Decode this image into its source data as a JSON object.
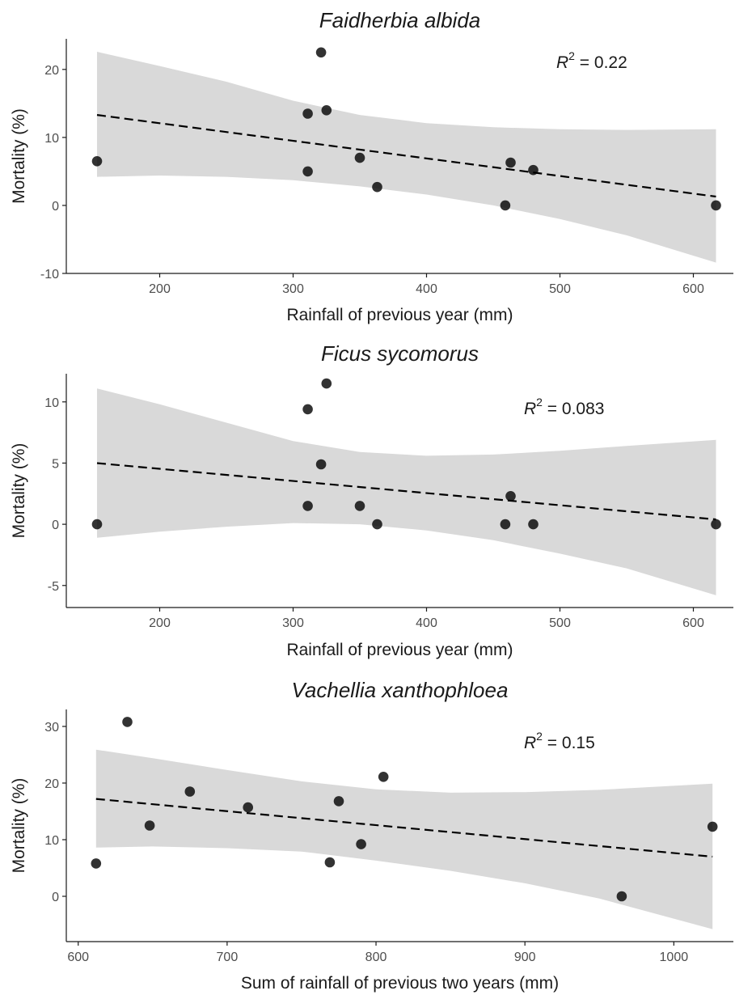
{
  "chart_data": [
    {
      "type": "scatter",
      "title": "Faidherbia albida",
      "xlabel": "Rainfall of previous year (mm)",
      "ylabel": "Mortality (%)",
      "xlim": [
        130,
        630
      ],
      "ylim": [
        -10,
        24.5
      ],
      "xticks": [
        200,
        300,
        400,
        500,
        600
      ],
      "yticks": [
        -10,
        0,
        10,
        20
      ],
      "annotation": {
        "prefix": "R",
        "sup": "2",
        "value": " = 0.22"
      },
      "points": [
        {
          "x": 153,
          "y": 6.5
        },
        {
          "x": 311,
          "y": 13.5
        },
        {
          "x": 311,
          "y": 5.0
        },
        {
          "x": 321,
          "y": 22.5
        },
        {
          "x": 325,
          "y": 14.0
        },
        {
          "x": 350,
          "y": 7.0
        },
        {
          "x": 363,
          "y": 2.7
        },
        {
          "x": 459,
          "y": 0.0
        },
        {
          "x": 463,
          "y": 6.3
        },
        {
          "x": 480,
          "y": 5.2
        },
        {
          "x": 617,
          "y": 0.0
        }
      ],
      "fit": {
        "x": [
          153,
          617
        ],
        "y": [
          13.3,
          1.3
        ]
      },
      "band": [
        {
          "x": 153,
          "lo": 4.2,
          "hi": 22.6
        },
        {
          "x": 200,
          "lo": 4.4,
          "hi": 20.5
        },
        {
          "x": 250,
          "lo": 4.2,
          "hi": 18.2
        },
        {
          "x": 300,
          "lo": 3.7,
          "hi": 15.4
        },
        {
          "x": 350,
          "lo": 2.8,
          "hi": 13.3
        },
        {
          "x": 400,
          "lo": 1.6,
          "hi": 12.1
        },
        {
          "x": 450,
          "lo": 0.0,
          "hi": 11.5
        },
        {
          "x": 500,
          "lo": -2.0,
          "hi": 11.2
        },
        {
          "x": 550,
          "lo": -4.4,
          "hi": 11.1
        },
        {
          "x": 617,
          "lo": -8.4,
          "hi": 11.2
        }
      ]
    },
    {
      "type": "scatter",
      "title": "Ficus sycomorus",
      "xlabel": "Rainfall of previous year (mm)",
      "ylabel": "Mortality (%)",
      "xlim": [
        130,
        630
      ],
      "ylim": [
        -6.8,
        12.3
      ],
      "xticks": [
        200,
        300,
        400,
        500,
        600
      ],
      "yticks": [
        -5,
        0,
        5,
        10
      ],
      "annotation": {
        "prefix": "R",
        "sup": "2",
        "value": " = 0.083"
      },
      "points": [
        {
          "x": 153,
          "y": 0.0
        },
        {
          "x": 311,
          "y": 9.4
        },
        {
          "x": 311,
          "y": 1.5
        },
        {
          "x": 321,
          "y": 4.9
        },
        {
          "x": 325,
          "y": 11.5
        },
        {
          "x": 350,
          "y": 1.5
        },
        {
          "x": 363,
          "y": 0.0
        },
        {
          "x": 459,
          "y": 0.0
        },
        {
          "x": 463,
          "y": 2.3
        },
        {
          "x": 480,
          "y": 0.0
        },
        {
          "x": 617,
          "y": 0.0
        }
      ],
      "fit": {
        "x": [
          153,
          617
        ],
        "y": [
          5.0,
          0.4
        ]
      },
      "band": [
        {
          "x": 153,
          "lo": -1.1,
          "hi": 11.1
        },
        {
          "x": 200,
          "lo": -0.6,
          "hi": 9.8
        },
        {
          "x": 250,
          "lo": -0.2,
          "hi": 8.3
        },
        {
          "x": 300,
          "lo": 0.1,
          "hi": 6.8
        },
        {
          "x": 350,
          "lo": 0.0,
          "hi": 5.9
        },
        {
          "x": 400,
          "lo": -0.5,
          "hi": 5.6
        },
        {
          "x": 450,
          "lo": -1.3,
          "hi": 5.7
        },
        {
          "x": 500,
          "lo": -2.4,
          "hi": 6.0
        },
        {
          "x": 550,
          "lo": -3.6,
          "hi": 6.4
        },
        {
          "x": 617,
          "lo": -5.8,
          "hi": 6.9
        }
      ]
    },
    {
      "type": "scatter",
      "title": "Vachellia xanthophloea",
      "xlabel": "Sum of rainfall of previous two years (mm)",
      "ylabel": "Mortality (%)",
      "xlim": [
        592,
        1040
      ],
      "ylim": [
        -8,
        33
      ],
      "xticks": [
        600,
        700,
        800,
        900,
        1000
      ],
      "yticks": [
        0,
        10,
        20,
        30
      ],
      "annotation": {
        "prefix": "R",
        "sup": "2",
        "value": " = 0.15"
      },
      "points": [
        {
          "x": 612,
          "y": 5.8
        },
        {
          "x": 633,
          "y": 30.8
        },
        {
          "x": 648,
          "y": 12.5
        },
        {
          "x": 675,
          "y": 18.5
        },
        {
          "x": 714,
          "y": 15.7
        },
        {
          "x": 769,
          "y": 6.0
        },
        {
          "x": 775,
          "y": 16.8
        },
        {
          "x": 790,
          "y": 9.2
        },
        {
          "x": 805,
          "y": 21.1
        },
        {
          "x": 965,
          "y": 0.0
        },
        {
          "x": 1026,
          "y": 12.3
        }
      ],
      "fit": {
        "x": [
          612,
          1026
        ],
        "y": [
          17.2,
          7.0
        ]
      },
      "band": [
        {
          "x": 612,
          "lo": 8.6,
          "hi": 25.9
        },
        {
          "x": 650,
          "lo": 8.8,
          "hi": 24.4
        },
        {
          "x": 700,
          "lo": 8.5,
          "hi": 22.3
        },
        {
          "x": 750,
          "lo": 7.9,
          "hi": 20.3
        },
        {
          "x": 800,
          "lo": 6.3,
          "hi": 18.9
        },
        {
          "x": 850,
          "lo": 4.5,
          "hi": 18.3
        },
        {
          "x": 900,
          "lo": 2.3,
          "hi": 18.4
        },
        {
          "x": 950,
          "lo": -0.4,
          "hi": 18.8
        },
        {
          "x": 1026,
          "lo": -5.8,
          "hi": 19.9
        }
      ]
    }
  ]
}
